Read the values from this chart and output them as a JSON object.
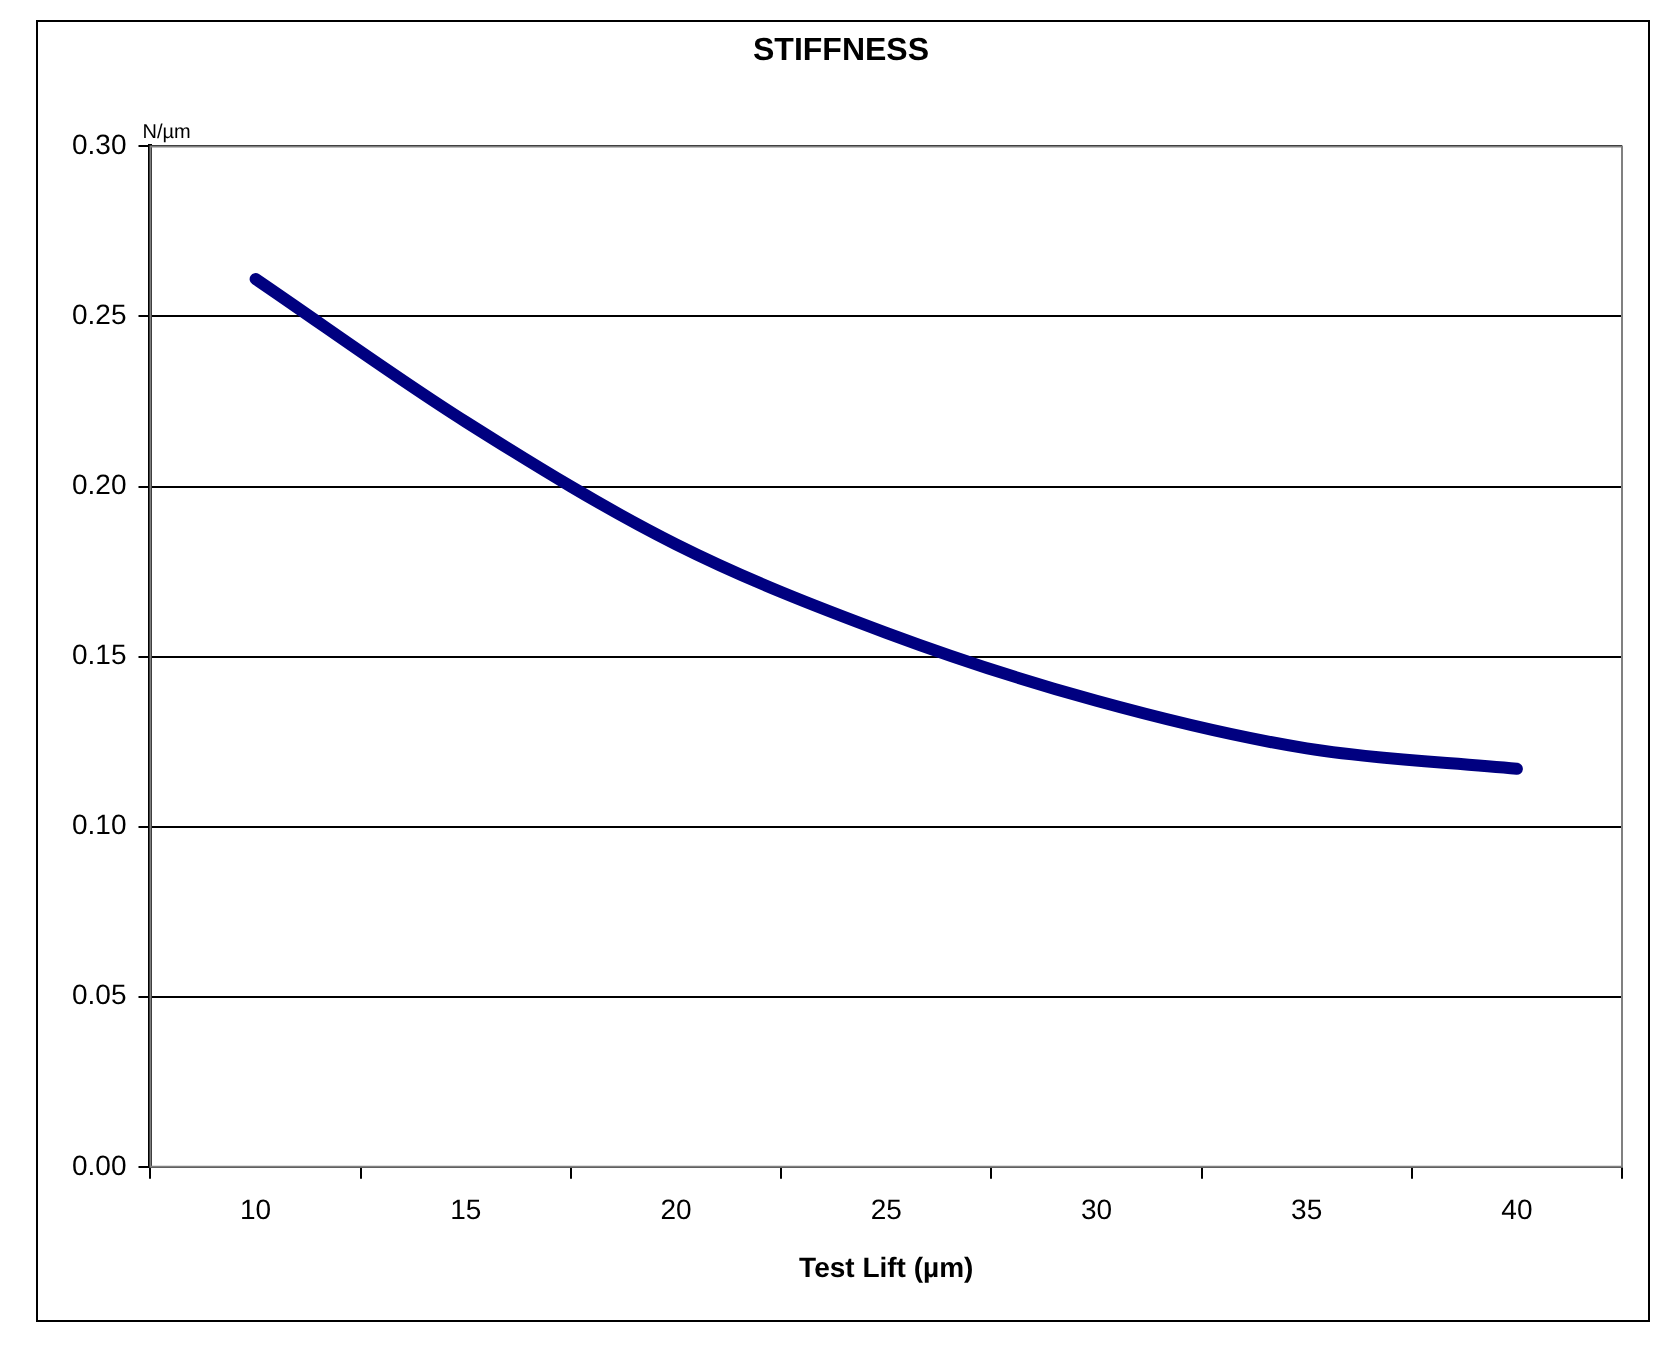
{
  "chart_data": {
    "type": "line",
    "title": "STIFFNESS",
    "xlabel": "Test Lift (µm)",
    "ylabel": "N/µm",
    "categories": [
      "10",
      "15",
      "20",
      "25",
      "30",
      "35",
      "40"
    ],
    "series": [
      {
        "color": "#000080",
        "values": [
          0.261,
          0.219,
          0.183,
          0.157,
          0.137,
          0.123,
          0.117
        ]
      }
    ],
    "ylim": [
      0,
      0.3
    ],
    "yticks": [
      {
        "value": 0,
        "label": "0.00"
      },
      {
        "value": 0.05,
        "label": "0.05"
      },
      {
        "value": 0.1,
        "label": "0.10"
      },
      {
        "value": 0.15,
        "label": "0.15"
      },
      {
        "value": 0.2,
        "label": "0.20"
      },
      {
        "value": 0.25,
        "label": "0.25"
      },
      {
        "value": 0.3,
        "label": "0.30"
      }
    ],
    "grid": "y",
    "legend": false,
    "marker": "none",
    "line_style": "solid"
  }
}
